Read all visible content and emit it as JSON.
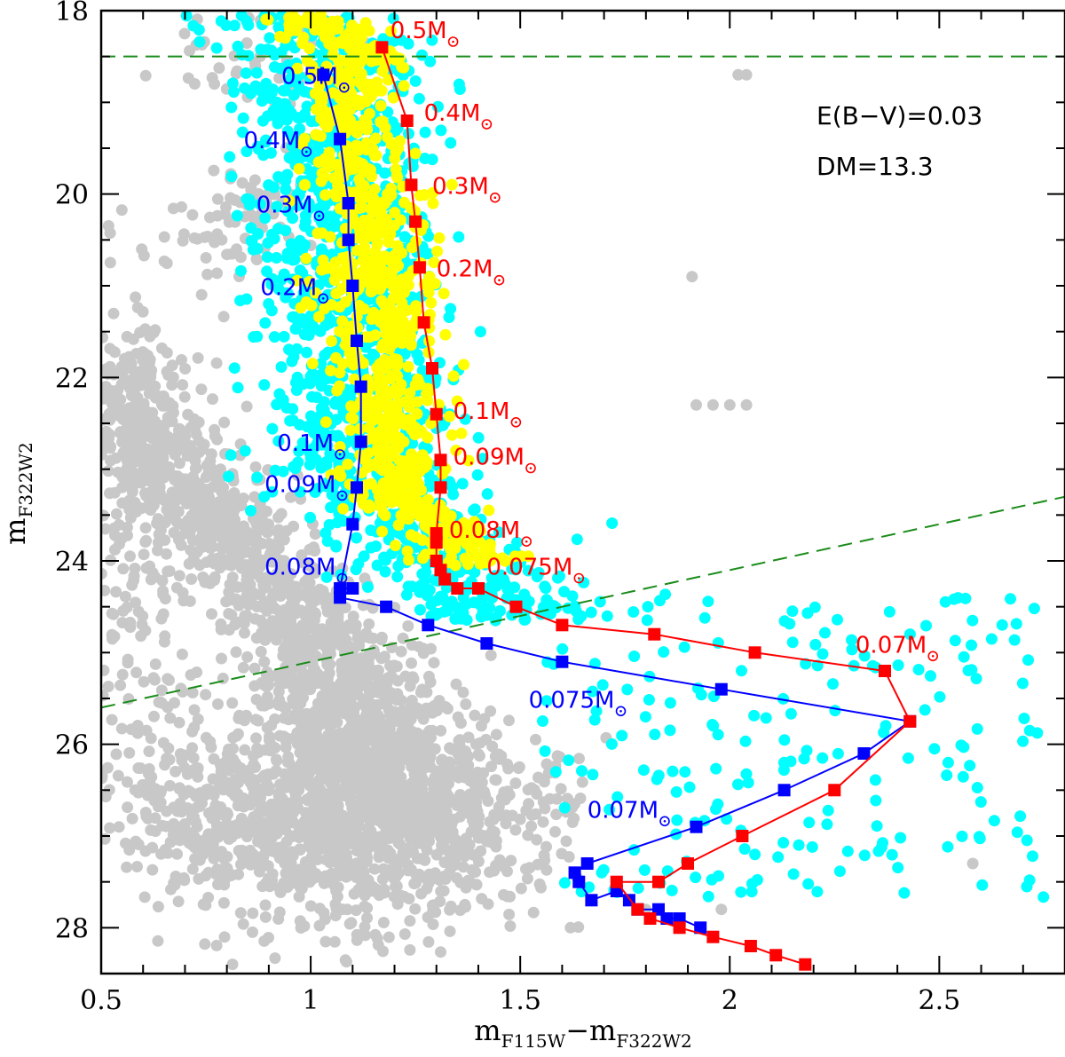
{
  "chart_data": {
    "type": "scatter",
    "xlabel": {
      "main": "m",
      "sub1": "F115W",
      "minus": "−m",
      "sub2": "F322W2"
    },
    "ylabel": {
      "main": "m",
      "sub": "F322W2"
    },
    "xlim": [
      0.5,
      2.8
    ],
    "ylim": [
      28.5,
      18
    ],
    "y_inverted": true,
    "x_ticks": [
      "0.5",
      "1",
      "1.5",
      "2",
      "2.5"
    ],
    "x_tick_values": [
      0.5,
      1.0,
      1.5,
      2.0,
      2.5
    ],
    "y_ticks": [
      "18",
      "20",
      "22",
      "24",
      "26",
      "28"
    ],
    "y_tick_values": [
      18,
      20,
      22,
      24,
      26,
      28
    ],
    "annotations": [
      "E(B−V)=0.03",
      "DM=13.3"
    ],
    "colors": {
      "field": "#c8c8c8",
      "cyan": "#00ffff",
      "yellow": "#ffff00",
      "blue_track": "#0000ff",
      "red_track": "#ff0000",
      "dashed": "#1a8c1a"
    },
    "dashed_lines": [
      {
        "x": [
          0.5,
          2.8
        ],
        "y": [
          18.5,
          18.5
        ]
      },
      {
        "x": [
          0.5,
          2.8
        ],
        "y": [
          25.6,
          23.3
        ]
      }
    ],
    "series": [
      {
        "color": "blue",
        "x": [
          1.03,
          1.07,
          1.09,
          1.09,
          1.1,
          1.11,
          1.12,
          1.12,
          1.11,
          1.1,
          1.07,
          1.1,
          1.07,
          1.18,
          1.28,
          1.42,
          1.6,
          1.98,
          2.43,
          2.32,
          2.13,
          1.92,
          1.66,
          1.63,
          1.64,
          1.67,
          1.73,
          1.76,
          1.78,
          1.83,
          1.85,
          1.88,
          1.93
        ],
        "y": [
          18.7,
          19.4,
          20.1,
          20.5,
          21.0,
          21.6,
          22.1,
          22.7,
          23.2,
          23.6,
          24.3,
          24.3,
          24.4,
          24.5,
          24.7,
          24.9,
          25.1,
          25.4,
          25.75,
          26.1,
          26.5,
          26.9,
          27.3,
          27.4,
          27.5,
          27.7,
          27.6,
          27.7,
          27.8,
          27.8,
          27.9,
          27.9,
          28.0
        ]
      },
      {
        "color": "red",
        "x": [
          1.17,
          1.23,
          1.24,
          1.25,
          1.26,
          1.27,
          1.29,
          1.3,
          1.31,
          1.31,
          1.3,
          1.3,
          1.3,
          1.31,
          1.32,
          1.35,
          1.4,
          1.49,
          1.6,
          1.82,
          2.06,
          2.37,
          2.43,
          2.25,
          2.03,
          1.9,
          1.83,
          1.73,
          1.78,
          1.81,
          1.88,
          1.96,
          2.05,
          2.11,
          2.18
        ],
        "y": [
          18.4,
          19.2,
          19.9,
          20.3,
          20.8,
          21.4,
          21.9,
          22.4,
          22.9,
          23.2,
          23.7,
          23.8,
          24.0,
          24.1,
          24.2,
          24.3,
          24.3,
          24.5,
          24.7,
          24.8,
          25.0,
          25.2,
          25.75,
          26.5,
          27.0,
          27.3,
          27.5,
          27.5,
          27.8,
          27.9,
          28.0,
          28.1,
          28.2,
          28.3,
          28.4
        ]
      }
    ],
    "mass_labels": [
      {
        "text": "0.5M",
        "color": "blue",
        "x": 0.93,
        "y": 18.8
      },
      {
        "text": "0.4M",
        "color": "blue",
        "x": 0.84,
        "y": 19.5
      },
      {
        "text": "0.3M",
        "color": "blue",
        "x": 0.87,
        "y": 20.2
      },
      {
        "text": "0.2M",
        "color": "blue",
        "x": 0.88,
        "y": 21.1
      },
      {
        "text": "0.1M",
        "color": "blue",
        "x": 0.92,
        "y": 22.8
      },
      {
        "text": "0.09M",
        "color": "blue",
        "x": 0.89,
        "y": 23.25
      },
      {
        "text": "0.08M",
        "color": "blue",
        "x": 0.89,
        "y": 24.15
      },
      {
        "text": "0.075M",
        "color": "blue",
        "x": 1.52,
        "y": 25.6
      },
      {
        "text": "0.07M",
        "color": "blue",
        "x": 1.66,
        "y": 26.8
      },
      {
        "text": "0.5M",
        "color": "red",
        "x": 1.19,
        "y": 18.3
      },
      {
        "text": "0.4M",
        "color": "red",
        "x": 1.27,
        "y": 19.2
      },
      {
        "text": "0.3M",
        "color": "red",
        "x": 1.29,
        "y": 20.0
      },
      {
        "text": "0.2M",
        "color": "red",
        "x": 1.3,
        "y": 20.9
      },
      {
        "text": "0.1M",
        "color": "red",
        "x": 1.34,
        "y": 22.45
      },
      {
        "text": "0.09M",
        "color": "red",
        "x": 1.34,
        "y": 22.95
      },
      {
        "text": "0.08M",
        "color": "red",
        "x": 1.33,
        "y": 23.75
      },
      {
        "text": "0.075M",
        "color": "red",
        "x": 1.42,
        "y": 24.15
      },
      {
        "text": "0.07M",
        "color": "red",
        "x": 2.3,
        "y": 25.0
      }
    ]
  }
}
